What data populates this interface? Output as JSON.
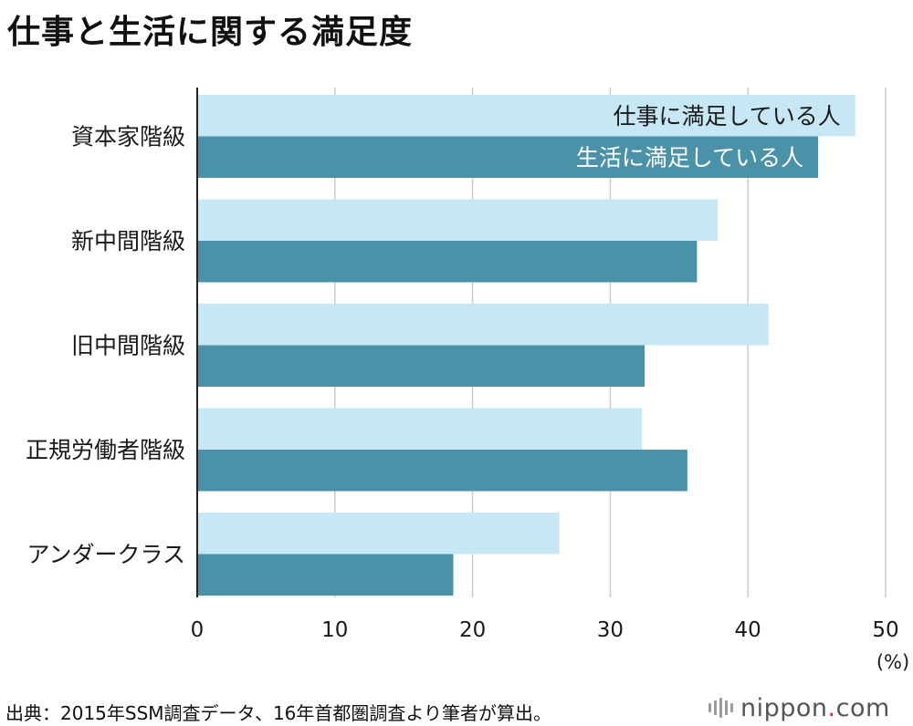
{
  "title": "仕事と生活に関する満足度",
  "source": "出典：2015年SSM調査データ、16年首都圏調査より筆者が算出。",
  "logo": {
    "name": "nippon",
    "dot": ".",
    "suffix": "com"
  },
  "colors": {
    "work": "#c6e7f3",
    "life": "#4a92a8",
    "grid": "#cccccc",
    "axis": "#222222"
  },
  "chart_data": {
    "type": "bar",
    "orientation": "horizontal",
    "categories": [
      "資本家階級",
      "新中間階級",
      "旧中間階級",
      "正規労働者階級",
      "アンダークラス"
    ],
    "series": [
      {
        "name": "仕事に満足している人",
        "values": [
          47.8,
          37.8,
          41.5,
          32.3,
          26.3
        ]
      },
      {
        "name": "生活に満足している人",
        "values": [
          45.1,
          36.3,
          32.5,
          35.6,
          18.6
        ]
      }
    ],
    "xlim": [
      0,
      50
    ],
    "xticks": [
      0,
      10,
      20,
      30,
      40,
      50
    ],
    "xunit": "(%)",
    "grid": true,
    "legend": "labels inside first category bars"
  }
}
